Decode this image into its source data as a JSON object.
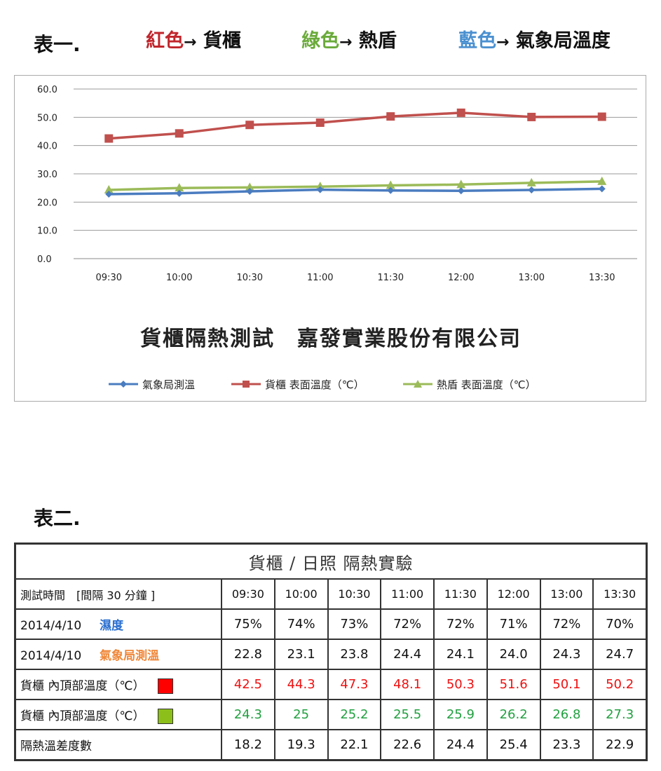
{
  "header": {
    "title": "表一.",
    "key": [
      {
        "word": "紅色",
        "arrow": "→",
        "target": "貨櫃",
        "color": "#c0262c"
      },
      {
        "word": "綠色",
        "arrow": "→",
        "target": "熱盾",
        "color": "#6aaa3a"
      },
      {
        "word": "藍色",
        "arrow": "→",
        "target": "氣象局溫度",
        "color": "#4a90d0"
      }
    ]
  },
  "chart_data": {
    "type": "line",
    "title": "貨櫃隔熱測試　嘉發實業股份有限公司",
    "categories": [
      "09:30",
      "10:00",
      "10:30",
      "11:00",
      "11:30",
      "12:00",
      "13:00",
      "13:30"
    ],
    "ylim": [
      0,
      60
    ],
    "yticks": [
      "0.0",
      "10.0",
      "20.0",
      "30.0",
      "40.0",
      "50.0",
      "60.0"
    ],
    "grid": true,
    "legend_position": "bottom",
    "series": [
      {
        "name": "氣象局測溫",
        "color": "#4a7cc0",
        "marker": "diamond",
        "values": [
          22.8,
          23.1,
          23.8,
          24.4,
          24.1,
          24.0,
          24.3,
          24.7
        ]
      },
      {
        "name": "貨櫃 表面溫度（℃）",
        "color": "#c0504d",
        "marker": "square",
        "values": [
          42.5,
          44.3,
          47.3,
          48.1,
          50.3,
          51.6,
          50.1,
          50.2
        ]
      },
      {
        "name": "熱盾 表面溫度（℃）",
        "color": "#9bbb59",
        "marker": "triangle",
        "values": [
          24.3,
          25,
          25.2,
          25.5,
          25.9,
          26.2,
          26.8,
          27.3
        ]
      }
    ]
  },
  "table2": {
    "label": "表二.",
    "caption": "貨櫃 / 日照 隔熱實驗",
    "rows": [
      {
        "label": "測試時間　[間隔 30 分鐘 ]",
        "label_color": "#111",
        "cell_color": "#111",
        "cells": [
          "09:30",
          "10:00",
          "10:30",
          "11:00",
          "11:30",
          "12:00",
          "13:00",
          "13:30"
        ]
      },
      {
        "label": "2014/4/10",
        "tag": "濕度",
        "tag_color": "#2a6fd0",
        "label_color": "#111",
        "cell_color": "#111",
        "cells": [
          "75%",
          "74%",
          "73%",
          "72%",
          "72%",
          "71%",
          "72%",
          "70%"
        ]
      },
      {
        "label": "2014/4/10",
        "tag": "氣象局測溫",
        "tag_color": "#f0883a",
        "label_color": "#111",
        "cell_color": "#111",
        "cells": [
          "22.8",
          "23.1",
          "23.8",
          "24.4",
          "24.1",
          "24.0",
          "24.3",
          "24.7"
        ]
      },
      {
        "label": "貨櫃 內頂部溫度（℃）",
        "swatch": "#ff0000",
        "label_color": "#111",
        "cell_color": "#ee1111",
        "cells": [
          "42.5",
          "44.3",
          "47.3",
          "48.1",
          "50.3",
          "51.6",
          "50.1",
          "50.2"
        ]
      },
      {
        "label": "貨櫃 內頂部溫度（℃）",
        "swatch": "#8cbf1a",
        "label_color": "#111",
        "cell_color": "#22a040",
        "cells": [
          "24.3",
          "25",
          "25.2",
          "25.5",
          "25.9",
          "26.2",
          "26.8",
          "27.3"
        ]
      },
      {
        "label": "隔熱溫差度數",
        "label_color": "#111",
        "cell_color": "#111",
        "cells": [
          "18.2",
          "19.3",
          "22.1",
          "22.6",
          "24.4",
          "25.4",
          "23.3",
          "22.9"
        ]
      }
    ]
  }
}
